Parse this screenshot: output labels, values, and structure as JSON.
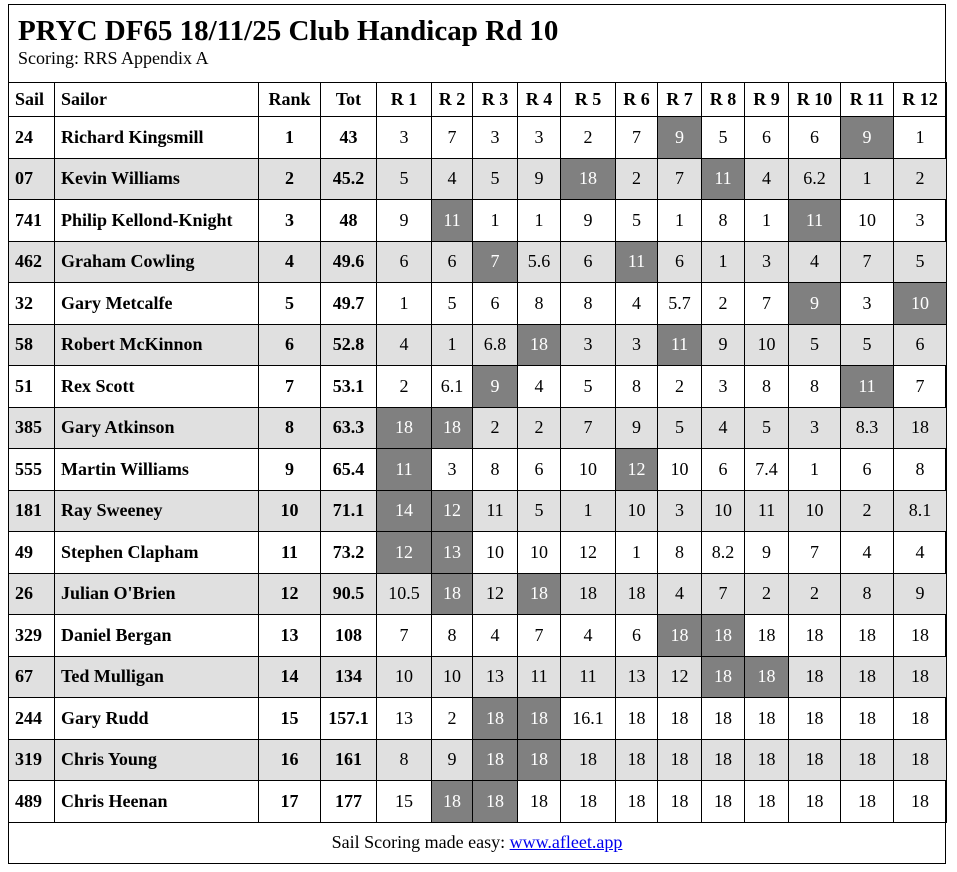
{
  "header": {
    "title": "PRYC DF65 18/11/25 Club Handicap Rd 10",
    "subtitle": "Scoring: RRS Appendix A"
  },
  "table": {
    "columns": [
      "Sail",
      "Sailor",
      "Rank",
      "Tot",
      "R 1",
      "R 2",
      "R 3",
      "R 4",
      "R 5",
      "R 6",
      "R 7",
      "R 8",
      "R 9",
      "R 10",
      "R 11",
      "R 12"
    ],
    "rows": [
      {
        "sail": "24",
        "sailor": "Richard Kingsmill",
        "rank": 1,
        "total": 43,
        "scores": [
          3,
          7,
          3,
          3,
          2,
          7,
          9,
          5,
          6,
          6,
          9,
          1
        ],
        "discards": [
          6,
          10
        ]
      },
      {
        "sail": "07",
        "sailor": "Kevin Williams",
        "rank": 2,
        "total": 45.2,
        "scores": [
          5,
          4,
          5,
          9,
          18,
          2,
          7,
          11,
          4,
          6.2,
          1,
          2
        ],
        "discards": [
          4,
          7
        ]
      },
      {
        "sail": "741",
        "sailor": "Philip Kellond-Knight",
        "rank": 3,
        "total": 48,
        "scores": [
          9,
          11,
          1,
          1,
          9,
          5,
          1,
          8,
          1,
          11,
          10,
          3
        ],
        "discards": [
          1,
          9
        ]
      },
      {
        "sail": "462",
        "sailor": "Graham Cowling",
        "rank": 4,
        "total": 49.6,
        "scores": [
          6,
          6,
          7,
          5.6,
          6,
          11,
          6,
          1,
          3,
          4,
          7,
          5
        ],
        "discards": [
          2,
          5
        ]
      },
      {
        "sail": "32",
        "sailor": "Gary Metcalfe",
        "rank": 5,
        "total": 49.7,
        "scores": [
          1,
          5,
          6,
          8,
          8,
          4,
          5.7,
          2,
          7,
          9,
          3,
          10
        ],
        "discards": [
          9,
          11
        ]
      },
      {
        "sail": "58",
        "sailor": "Robert McKinnon",
        "rank": 6,
        "total": 52.8,
        "scores": [
          4,
          1,
          6.8,
          18,
          3,
          3,
          11,
          9,
          10,
          5,
          5,
          6
        ],
        "discards": [
          3,
          6
        ]
      },
      {
        "sail": "51",
        "sailor": "Rex Scott",
        "rank": 7,
        "total": 53.1,
        "scores": [
          2,
          6.1,
          9,
          4,
          5,
          8,
          2,
          3,
          8,
          8,
          11,
          7
        ],
        "discards": [
          2,
          10
        ]
      },
      {
        "sail": "385",
        "sailor": "Gary Atkinson",
        "rank": 8,
        "total": 63.3,
        "scores": [
          18,
          18,
          2,
          2,
          7,
          9,
          5,
          4,
          5,
          3,
          8.3,
          18
        ],
        "discards": [
          0,
          1
        ]
      },
      {
        "sail": "555",
        "sailor": "Martin Williams",
        "rank": 9,
        "total": 65.4,
        "scores": [
          11,
          3,
          8,
          6,
          10,
          12,
          10,
          6,
          7.4,
          1,
          6,
          8
        ],
        "discards": [
          0,
          5
        ]
      },
      {
        "sail": "181",
        "sailor": "Ray Sweeney",
        "rank": 10,
        "total": 71.1,
        "scores": [
          14,
          12,
          11,
          5,
          1,
          10,
          3,
          10,
          11,
          10,
          2,
          8.1
        ],
        "discards": [
          0,
          1
        ]
      },
      {
        "sail": "49",
        "sailor": "Stephen Clapham",
        "rank": 11,
        "total": 73.2,
        "scores": [
          12,
          13,
          10,
          10,
          12,
          1,
          8,
          8.2,
          9,
          7,
          4,
          4
        ],
        "discards": [
          0,
          1
        ]
      },
      {
        "sail": "26",
        "sailor": "Julian O'Brien",
        "rank": 12,
        "total": 90.5,
        "scores": [
          10.5,
          18,
          12,
          18,
          18,
          18,
          4,
          7,
          2,
          2,
          8,
          9
        ],
        "discards": [
          1,
          3
        ]
      },
      {
        "sail": "329",
        "sailor": "Daniel Bergan",
        "rank": 13,
        "total": 108,
        "scores": [
          7,
          8,
          4,
          7,
          4,
          6,
          18,
          18,
          18,
          18,
          18,
          18
        ],
        "discards": [
          6,
          7
        ]
      },
      {
        "sail": "67",
        "sailor": "Ted Mulligan",
        "rank": 14,
        "total": 134,
        "scores": [
          10,
          10,
          13,
          11,
          11,
          13,
          12,
          18,
          18,
          18,
          18,
          18
        ],
        "discards": [
          7,
          8
        ]
      },
      {
        "sail": "244",
        "sailor": "Gary Rudd",
        "rank": 15,
        "total": 157.1,
        "scores": [
          13,
          2,
          18,
          18,
          16.1,
          18,
          18,
          18,
          18,
          18,
          18,
          18
        ],
        "discards": [
          2,
          3
        ]
      },
      {
        "sail": "319",
        "sailor": "Chris Young",
        "rank": 16,
        "total": 161,
        "scores": [
          8,
          9,
          18,
          18,
          18,
          18,
          18,
          18,
          18,
          18,
          18,
          18
        ],
        "discards": [
          2,
          3
        ]
      },
      {
        "sail": "489",
        "sailor": "Chris Heenan",
        "rank": 17,
        "total": 177,
        "scores": [
          15,
          18,
          18,
          18,
          18,
          18,
          18,
          18,
          18,
          18,
          18,
          18
        ],
        "discards": [
          1,
          2
        ]
      }
    ]
  },
  "footer": {
    "text": "Sail Scoring made easy:",
    "link": "www.afleet.app"
  }
}
